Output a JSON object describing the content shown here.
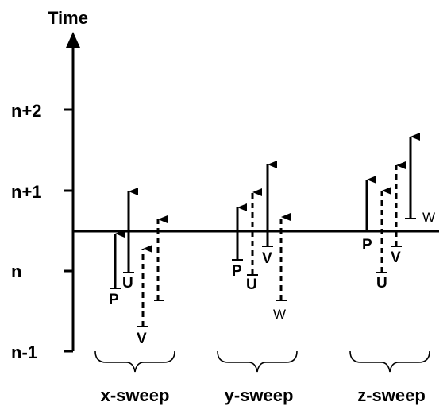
{
  "axis": {
    "title": "Time",
    "ticks": [
      "n+2",
      "n+1",
      "n",
      "n-1"
    ]
  },
  "groups": [
    "x-sweep",
    "y-sweep",
    "z-sweep"
  ],
  "arrows": {
    "x_p": "P",
    "x_u": "U",
    "x_v": "V",
    "y_p": "P",
    "y_u": "U",
    "y_v": "V",
    "y_w": "W",
    "z_p": "P",
    "z_u": "U",
    "z_v": "V",
    "z_w": "W"
  }
}
